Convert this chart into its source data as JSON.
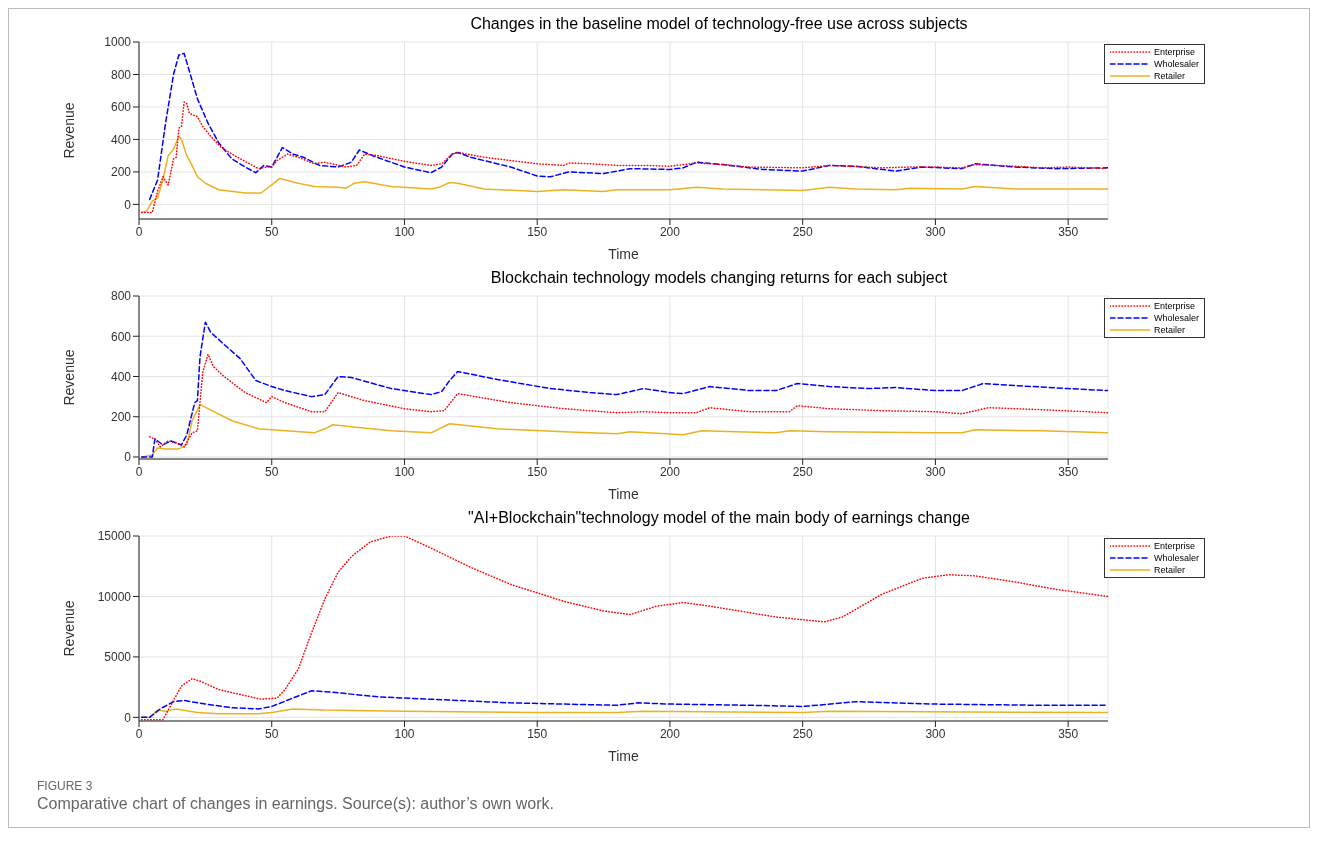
{
  "chart_data": [
    {
      "type": "line",
      "title": "Changes in the baseline model of technology-free use across subjects",
      "xlabel": "Time",
      "ylabel": "Revenue",
      "xlim": [
        0,
        365
      ],
      "xticks": [
        0,
        50,
        100,
        150,
        200,
        250,
        300,
        350
      ],
      "ylim": [
        -90,
        1000
      ],
      "yticks": [
        0,
        200,
        400,
        600,
        800,
        1000
      ],
      "grid": true,
      "legend": "top right",
      "marker": "none",
      "series": [
        {
          "name": "Enterprise",
          "color": "#ff0000",
          "line_style": "dotted",
          "x": [
            1,
            5,
            7,
            9,
            11,
            13,
            14,
            15,
            16,
            17,
            18,
            19,
            22,
            24,
            27,
            31,
            36,
            45,
            48,
            50,
            52,
            56,
            60,
            66,
            70,
            78,
            82,
            85,
            90,
            100,
            110,
            114,
            118,
            120,
            130,
            140,
            150,
            160,
            162,
            170,
            180,
            190,
            200,
            210,
            220,
            230,
            250,
            260,
            280,
            290,
            300,
            310,
            315,
            330,
            340,
            350,
            365
          ],
          "values": [
            -50,
            -50,
            80,
            170,
            120,
            280,
            290,
            470,
            480,
            630,
            620,
            560,
            540,
            480,
            420,
            350,
            300,
            220,
            230,
            230,
            270,
            310,
            290,
            250,
            260,
            230,
            240,
            310,
            300,
            265,
            240,
            250,
            310,
            320,
            290,
            270,
            250,
            240,
            255,
            250,
            240,
            240,
            235,
            255,
            245,
            230,
            225,
            240,
            225,
            230,
            230,
            225,
            245,
            235,
            225,
            230,
            220
          ]
        },
        {
          "name": "Wholesaler",
          "color": "#0000ff",
          "line_style": "dashed",
          "x": [
            4,
            7,
            10,
            13,
            15,
            17,
            19,
            22,
            26,
            30,
            35,
            40,
            44,
            47,
            50,
            54,
            58,
            62,
            68,
            75,
            80,
            83,
            88,
            100,
            110,
            114,
            118,
            120,
            125,
            140,
            150,
            155,
            162,
            175,
            185,
            200,
            205,
            210,
            220,
            235,
            250,
            260,
            270,
            285,
            295,
            310,
            315,
            330,
            345,
            365
          ],
          "values": [
            30,
            150,
            500,
            800,
            920,
            930,
            820,
            650,
            500,
            380,
            280,
            230,
            195,
            240,
            230,
            350,
            310,
            290,
            240,
            230,
            260,
            335,
            300,
            230,
            195,
            230,
            310,
            320,
            290,
            230,
            175,
            170,
            200,
            190,
            220,
            215,
            225,
            260,
            245,
            215,
            205,
            240,
            235,
            205,
            230,
            220,
            250,
            230,
            220,
            225
          ]
        },
        {
          "name": "Retailer",
          "color": "#edb120",
          "line_style": "solid",
          "x": [
            1,
            3,
            5,
            7,
            9,
            11,
            13,
            15,
            16,
            18,
            20,
            22,
            25,
            30,
            40,
            46,
            50,
            53,
            60,
            66,
            75,
            78,
            81,
            85,
            95,
            110,
            113,
            117,
            120,
            130,
            150,
            160,
            175,
            180,
            200,
            210,
            220,
            250,
            260,
            270,
            285,
            290,
            310,
            315,
            330,
            365
          ],
          "values": [
            -50,
            -40,
            20,
            40,
            150,
            300,
            340,
            420,
            400,
            300,
            240,
            170,
            130,
            90,
            70,
            70,
            120,
            160,
            130,
            110,
            105,
            100,
            130,
            140,
            110,
            95,
            105,
            135,
            130,
            95,
            80,
            90,
            80,
            90,
            90,
            105,
            95,
            85,
            105,
            95,
            90,
            100,
            95,
            110,
            95,
            95
          ]
        }
      ]
    },
    {
      "type": "line",
      "title": "Blockchain technology models changing returns for each subject",
      "xlabel": "Time",
      "ylabel": "Revenue",
      "xlim": [
        0,
        365
      ],
      "xticks": [
        0,
        50,
        100,
        150,
        200,
        250,
        300,
        350
      ],
      "ylim": [
        -10,
        800
      ],
      "yticks": [
        0,
        200,
        400,
        600,
        800
      ],
      "grid": true,
      "legend": "top right",
      "marker": "none",
      "series": [
        {
          "name": "Enterprise",
          "color": "#ff0000",
          "line_style": "dotted",
          "x": [
            4,
            6,
            8,
            11,
            14,
            17,
            20,
            22,
            24,
            26,
            28,
            32,
            40,
            48,
            50,
            55,
            65,
            70,
            75,
            85,
            100,
            110,
            115,
            120,
            140,
            160,
            180,
            190,
            200,
            210,
            215,
            230,
            245,
            248,
            260,
            280,
            300,
            310,
            320,
            340,
            365
          ],
          "values": [
            100,
            90,
            50,
            80,
            70,
            50,
            120,
            130,
            420,
            510,
            450,
            400,
            320,
            270,
            300,
            270,
            225,
            225,
            320,
            280,
            240,
            225,
            230,
            315,
            270,
            240,
            220,
            225,
            220,
            220,
            245,
            225,
            225,
            255,
            240,
            230,
            225,
            215,
            245,
            235,
            220
          ]
        },
        {
          "name": "Wholesaler",
          "color": "#0000ff",
          "line_style": "dashed",
          "x": [
            1,
            5,
            6,
            9,
            12,
            16,
            18,
            21,
            22,
            23,
            25,
            27,
            32,
            38,
            44,
            50,
            55,
            65,
            70,
            75,
            80,
            95,
            110,
            114,
            117,
            120,
            135,
            155,
            170,
            180,
            190,
            200,
            205,
            215,
            230,
            240,
            248,
            260,
            275,
            285,
            300,
            310,
            318,
            330,
            350,
            365
          ],
          "values": [
            0,
            0,
            90,
            60,
            80,
            60,
            110,
            270,
            280,
            500,
            670,
            620,
            560,
            490,
            380,
            350,
            330,
            300,
            310,
            400,
            395,
            340,
            310,
            325,
            380,
            425,
            385,
            340,
            320,
            310,
            340,
            320,
            315,
            350,
            330,
            330,
            365,
            350,
            340,
            345,
            330,
            330,
            365,
            355,
            340,
            330
          ]
        },
        {
          "name": "Retailer",
          "color": "#edb120",
          "line_style": "solid",
          "x": [
            1,
            5,
            7,
            10,
            15,
            18,
            20,
            23,
            26,
            35,
            45,
            50,
            66,
            70,
            73,
            80,
            95,
            110,
            117,
            135,
            160,
            180,
            185,
            205,
            212,
            225,
            240,
            245,
            260,
            300,
            310,
            315,
            340,
            365
          ],
          "values": [
            0,
            10,
            45,
            40,
            40,
            60,
            180,
            260,
            240,
            180,
            140,
            135,
            120,
            140,
            160,
            150,
            130,
            120,
            165,
            140,
            125,
            115,
            125,
            110,
            130,
            125,
            120,
            130,
            125,
            120,
            120,
            135,
            130,
            120
          ]
        }
      ]
    },
    {
      "type": "line",
      "title": "\"AI+Blockchain\"technology model of the main body of earnings change",
      "xlabel": "Time",
      "ylabel": "Revenue",
      "xlim": [
        0,
        365
      ],
      "xticks": [
        0,
        50,
        100,
        150,
        200,
        250,
        300,
        350
      ],
      "ylim": [
        -300,
        15000
      ],
      "yticks": [
        0,
        5000,
        10000,
        15000
      ],
      "grid": true,
      "legend": "top right",
      "marker": "none",
      "annotations": [
        "FIGURE 3",
        "Comparative chart of changes in earnings. Source(s): author’s own work."
      ],
      "series": [
        {
          "name": "Enterprise",
          "color": "#ff0000",
          "line_style": "dotted",
          "x": [
            1,
            5,
            9,
            12,
            16,
            20,
            23,
            30,
            40,
            46,
            52,
            55,
            60,
            65,
            70,
            75,
            80,
            87,
            95,
            100,
            110,
            125,
            140,
            160,
            175,
            185,
            195,
            205,
            215,
            240,
            258,
            265,
            280,
            295,
            305,
            315,
            330,
            345,
            365
          ],
          "values": [
            -200,
            -200,
            -200,
            1000,
            2600,
            3200,
            3000,
            2300,
            1800,
            1500,
            1600,
            2300,
            4000,
            7000,
            9800,
            12000,
            13300,
            14500,
            15000,
            15000,
            14000,
            12400,
            11000,
            9600,
            8800,
            8500,
            9200,
            9500,
            9200,
            8300,
            7900,
            8300,
            10200,
            11500,
            11800,
            11700,
            11200,
            10600,
            10000
          ]
        },
        {
          "name": "Wholesaler",
          "color": "#0000ff",
          "line_style": "dashed",
          "x": [
            1,
            4,
            8,
            13,
            17,
            25,
            35,
            45,
            50,
            58,
            65,
            72,
            90,
            110,
            140,
            160,
            180,
            188,
            200,
            230,
            250,
            270,
            300,
            340,
            365
          ],
          "values": [
            0,
            0,
            700,
            1300,
            1400,
            1100,
            800,
            700,
            900,
            1600,
            2200,
            2100,
            1700,
            1500,
            1200,
            1100,
            1000,
            1200,
            1100,
            1000,
            900,
            1300,
            1100,
            1000,
            1000
          ]
        },
        {
          "name": "Retailer",
          "color": "#edb120",
          "line_style": "solid",
          "x": [
            1,
            4,
            7,
            10,
            12,
            14,
            22,
            30,
            45,
            50,
            58,
            70,
            100,
            150,
            180,
            190,
            250,
            260,
            365
          ],
          "values": [
            0,
            0,
            600,
            500,
            600,
            700,
            400,
            300,
            300,
            400,
            700,
            600,
            500,
            400,
            400,
            500,
            400,
            500,
            400
          ]
        }
      ]
    }
  ]
}
